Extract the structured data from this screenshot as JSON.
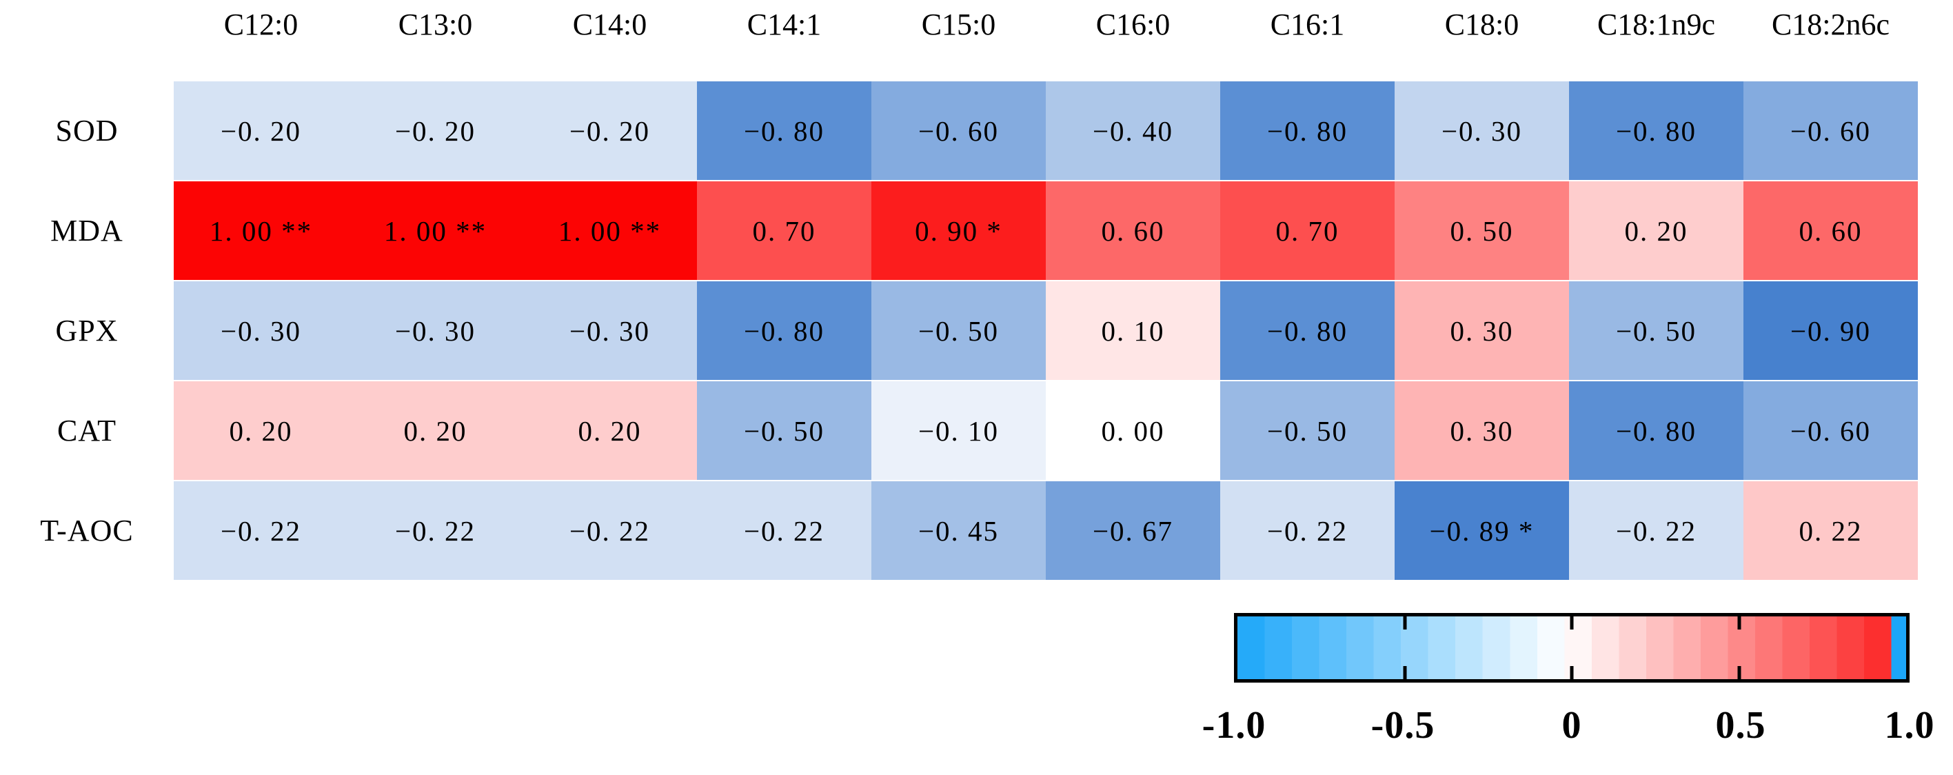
{
  "chart_data": {
    "type": "heatmap",
    "title": "",
    "x_categories": [
      "C12:0",
      "C13:0",
      "C14:0",
      "C14:1",
      "C15:0",
      "C16:0",
      "C16:1",
      "C18:0",
      "C18:1n9c",
      "C18:2n6c"
    ],
    "y_categories": [
      "SOD",
      "MDA",
      "GPX",
      "CAT",
      "T-AOC"
    ],
    "values": [
      [
        -0.2,
        -0.2,
        -0.2,
        -0.8,
        -0.6,
        -0.4,
        -0.8,
        -0.3,
        -0.8,
        -0.6
      ],
      [
        1.0,
        1.0,
        1.0,
        0.7,
        0.9,
        0.6,
        0.7,
        0.5,
        0.2,
        0.6
      ],
      [
        -0.3,
        -0.3,
        -0.3,
        -0.8,
        -0.5,
        0.1,
        -0.8,
        0.3,
        -0.5,
        -0.9
      ],
      [
        0.2,
        0.2,
        0.2,
        -0.5,
        -0.1,
        0.0,
        -0.5,
        0.3,
        -0.8,
        -0.6
      ],
      [
        -0.22,
        -0.22,
        -0.22,
        -0.22,
        -0.45,
        -0.67,
        -0.22,
        -0.89,
        -0.22,
        0.22
      ]
    ],
    "cell_labels": [
      [
        "−0. 20",
        "−0. 20",
        "−0. 20",
        "−0. 80",
        "−0. 60",
        "−0. 40",
        "−0. 80",
        "−0. 30",
        "−0. 80",
        "−0. 60"
      ],
      [
        "1. 00 **",
        "1. 00 **",
        "1. 00 **",
        "0. 70",
        "0. 90 *",
        "0. 60",
        "0. 70",
        "0. 50",
        "0. 20",
        "0. 60"
      ],
      [
        "−0. 30",
        "−0. 30",
        "−0. 30",
        "−0. 80",
        "−0. 50",
        "0. 10",
        "−0. 80",
        "0. 30",
        "−0. 50",
        "−0. 90"
      ],
      [
        "0. 20",
        "0. 20",
        "0. 20",
        "−0. 50",
        "−0. 10",
        "0. 00",
        "−0. 50",
        "0. 30",
        "−0. 80",
        "−0. 60"
      ],
      [
        "−0. 22",
        "−0. 22",
        "−0. 22",
        "−0. 22",
        "−0. 45",
        "−0. 67",
        "−0. 22",
        "−0. 89 *",
        "−0. 22",
        "0. 22"
      ]
    ],
    "colorbar": {
      "orientation": "horizontal",
      "position": "bottom-right",
      "min": -1.0,
      "max": 1.0,
      "tick_labels": [
        "-1.0",
        "-0.5",
        "0",
        "0.5",
        "1.0"
      ],
      "tick_values": [
        -1.0,
        -0.5,
        0,
        0.5,
        1.0
      ],
      "inner_tick_values": [
        -0.5,
        0,
        0.5
      ],
      "segments": 24
    },
    "legend_position": "none",
    "grid": false
  },
  "colors": {
    "cell_negative_end": "#3273C9",
    "cell_positive_end": "#FC0404",
    "cell_zero": "#FFFFFF",
    "bar_negative_end": "#1CA6F9",
    "bar_positive_end": "#FC2626",
    "bar_right_strip": "#1CA6F9",
    "bar_border": "#000000",
    "text": "#000000",
    "background": "#FFFFFF"
  }
}
